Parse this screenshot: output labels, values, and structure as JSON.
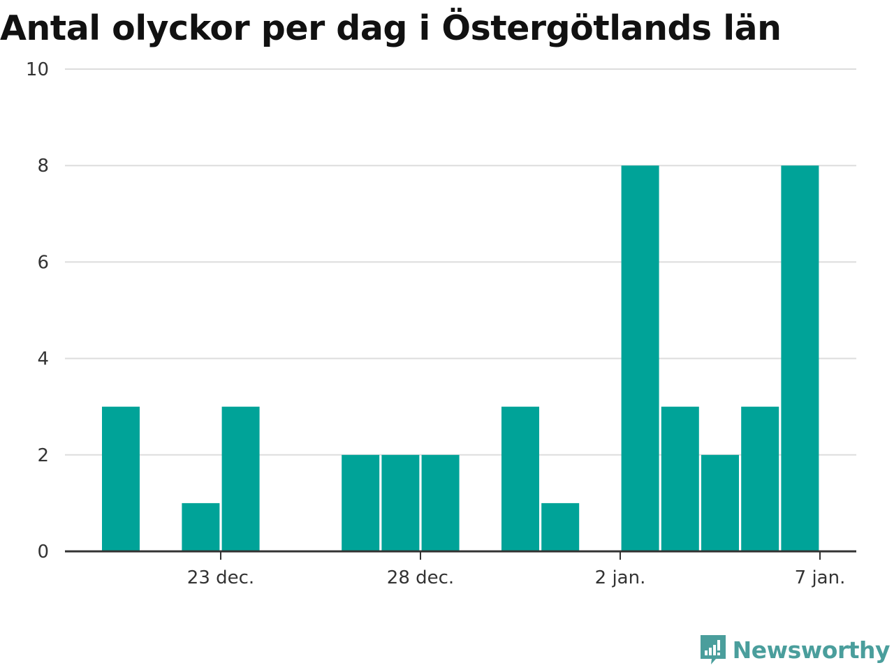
{
  "header": {
    "title": "Antal olyckor per dag i Östergötlands län"
  },
  "brand": {
    "name": "Newsworthy",
    "color": "#4a9e9c"
  },
  "colors": {
    "bar": "#00a398",
    "grid": "#dddddd",
    "axis": "#333333",
    "text": "#333333"
  },
  "chart_data": {
    "type": "bar",
    "title": "Antal olyckor per dag i Östergötlands län",
    "xlabel": "",
    "ylabel": "",
    "ylim": [
      0,
      10
    ],
    "yticks": [
      0,
      2,
      4,
      6,
      8,
      10
    ],
    "xticks": [
      {
        "date": "2019-12-23",
        "label": "23 dec."
      },
      {
        "date": "2019-12-28",
        "label": "28 dec."
      },
      {
        "date": "2020-01-02",
        "label": "2 jan."
      },
      {
        "date": "2020-01-07",
        "label": "7 jan."
      }
    ],
    "x": [
      "2019-12-20",
      "2019-12-21",
      "2019-12-22",
      "2019-12-23",
      "2019-12-24",
      "2019-12-25",
      "2019-12-26",
      "2019-12-27",
      "2019-12-28",
      "2019-12-29",
      "2019-12-30",
      "2019-12-31",
      "2020-01-01",
      "2020-01-02",
      "2020-01-03",
      "2020-01-04",
      "2020-01-05",
      "2020-01-06"
    ],
    "values": [
      3,
      0,
      1,
      3,
      0,
      0,
      2,
      2,
      2,
      0,
      3,
      1,
      0,
      8,
      3,
      2,
      3,
      8
    ],
    "grid": true,
    "legend": "none"
  }
}
